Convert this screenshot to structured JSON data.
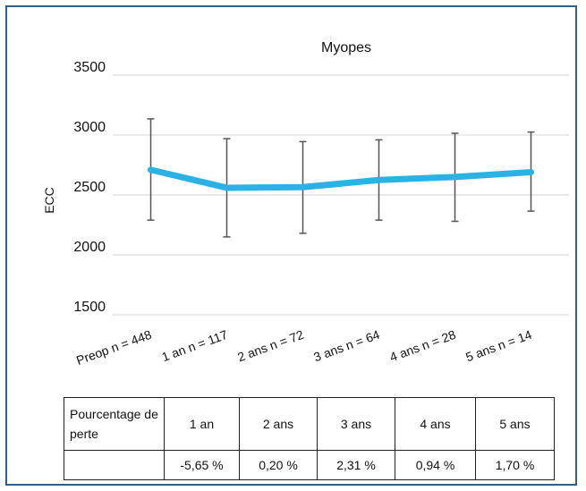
{
  "chart_data": {
    "type": "line",
    "title": "Myopes",
    "ylabel": "ECC",
    "xlabel": "",
    "ylim": [
      1500,
      3500
    ],
    "yticks": [
      1500,
      2000,
      2500,
      3000,
      3500
    ],
    "grid": true,
    "categories": [
      "Preop n = 448",
      "1 an n = 117",
      "2 ans n = 72",
      "3 ans n = 64",
      "4 ans n = 28",
      "5 ans n = 14"
    ],
    "series": [
      {
        "values": [
          2710,
          2560,
          2565,
          2625,
          2650,
          2690
        ],
        "error_low": [
          2290,
          2150,
          2180,
          2290,
          2280,
          2365
        ],
        "error_high": [
          3135,
          2970,
          2945,
          2960,
          3015,
          3025
        ],
        "color": "#2bb2e5"
      }
    ]
  },
  "table": {
    "header_label": "Pourcentage de perte",
    "columns": [
      "1 an",
      "2 ans",
      "3 ans",
      "4 ans",
      "5 ans"
    ],
    "values": [
      "-5,65 %",
      "0,20 %",
      "2,31 %",
      "0,94 %",
      "1,70 %"
    ]
  }
}
